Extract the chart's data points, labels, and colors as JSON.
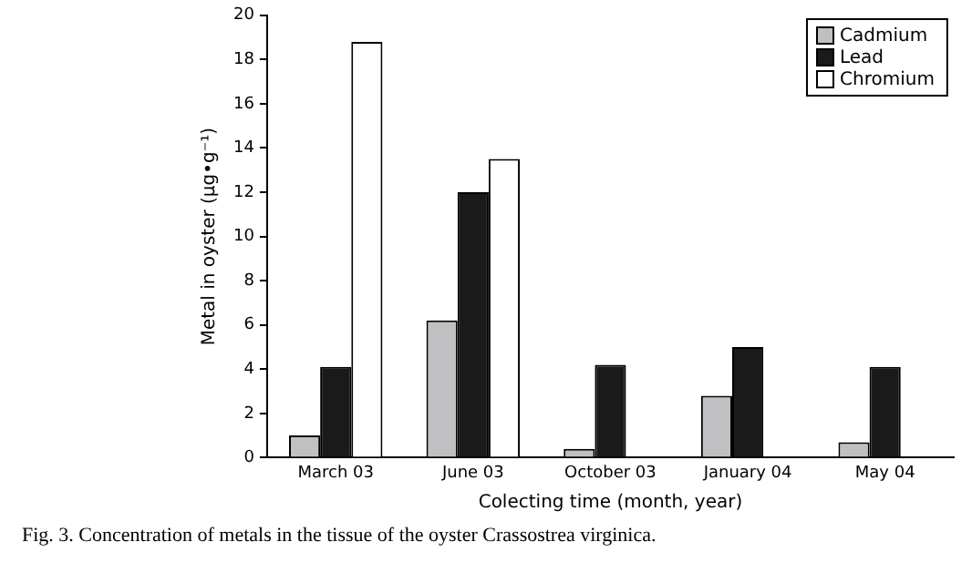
{
  "chart_data": {
    "type": "bar",
    "xlabel": "Colecting time (month, year)",
    "ylabel": "Metal in oyster (µg•g⁻¹)",
    "categories": [
      "March 03",
      "June 03",
      "October 03",
      "January 04",
      "May 04"
    ],
    "series": [
      {
        "name": "Cadmium",
        "color": "#c0c0c2",
        "values": [
          1.0,
          6.2,
          0.4,
          2.8,
          0.7
        ]
      },
      {
        "name": "Lead",
        "color": "#1a1a1a",
        "values": [
          4.1,
          12.0,
          4.2,
          5.0,
          4.1
        ]
      },
      {
        "name": "Chromium",
        "color": "#ffffff",
        "values": [
          18.8,
          13.5,
          null,
          null,
          null
        ]
      }
    ],
    "ylim": [
      0,
      20
    ],
    "yticks": [
      0,
      2,
      4,
      6,
      8,
      10,
      12,
      14,
      16,
      18,
      20
    ],
    "grid": false,
    "legend": "top right",
    "annotations": [
      "Fig. 3. Concentration of metals in the tissue of the oyster Crassostrea virginica."
    ]
  }
}
